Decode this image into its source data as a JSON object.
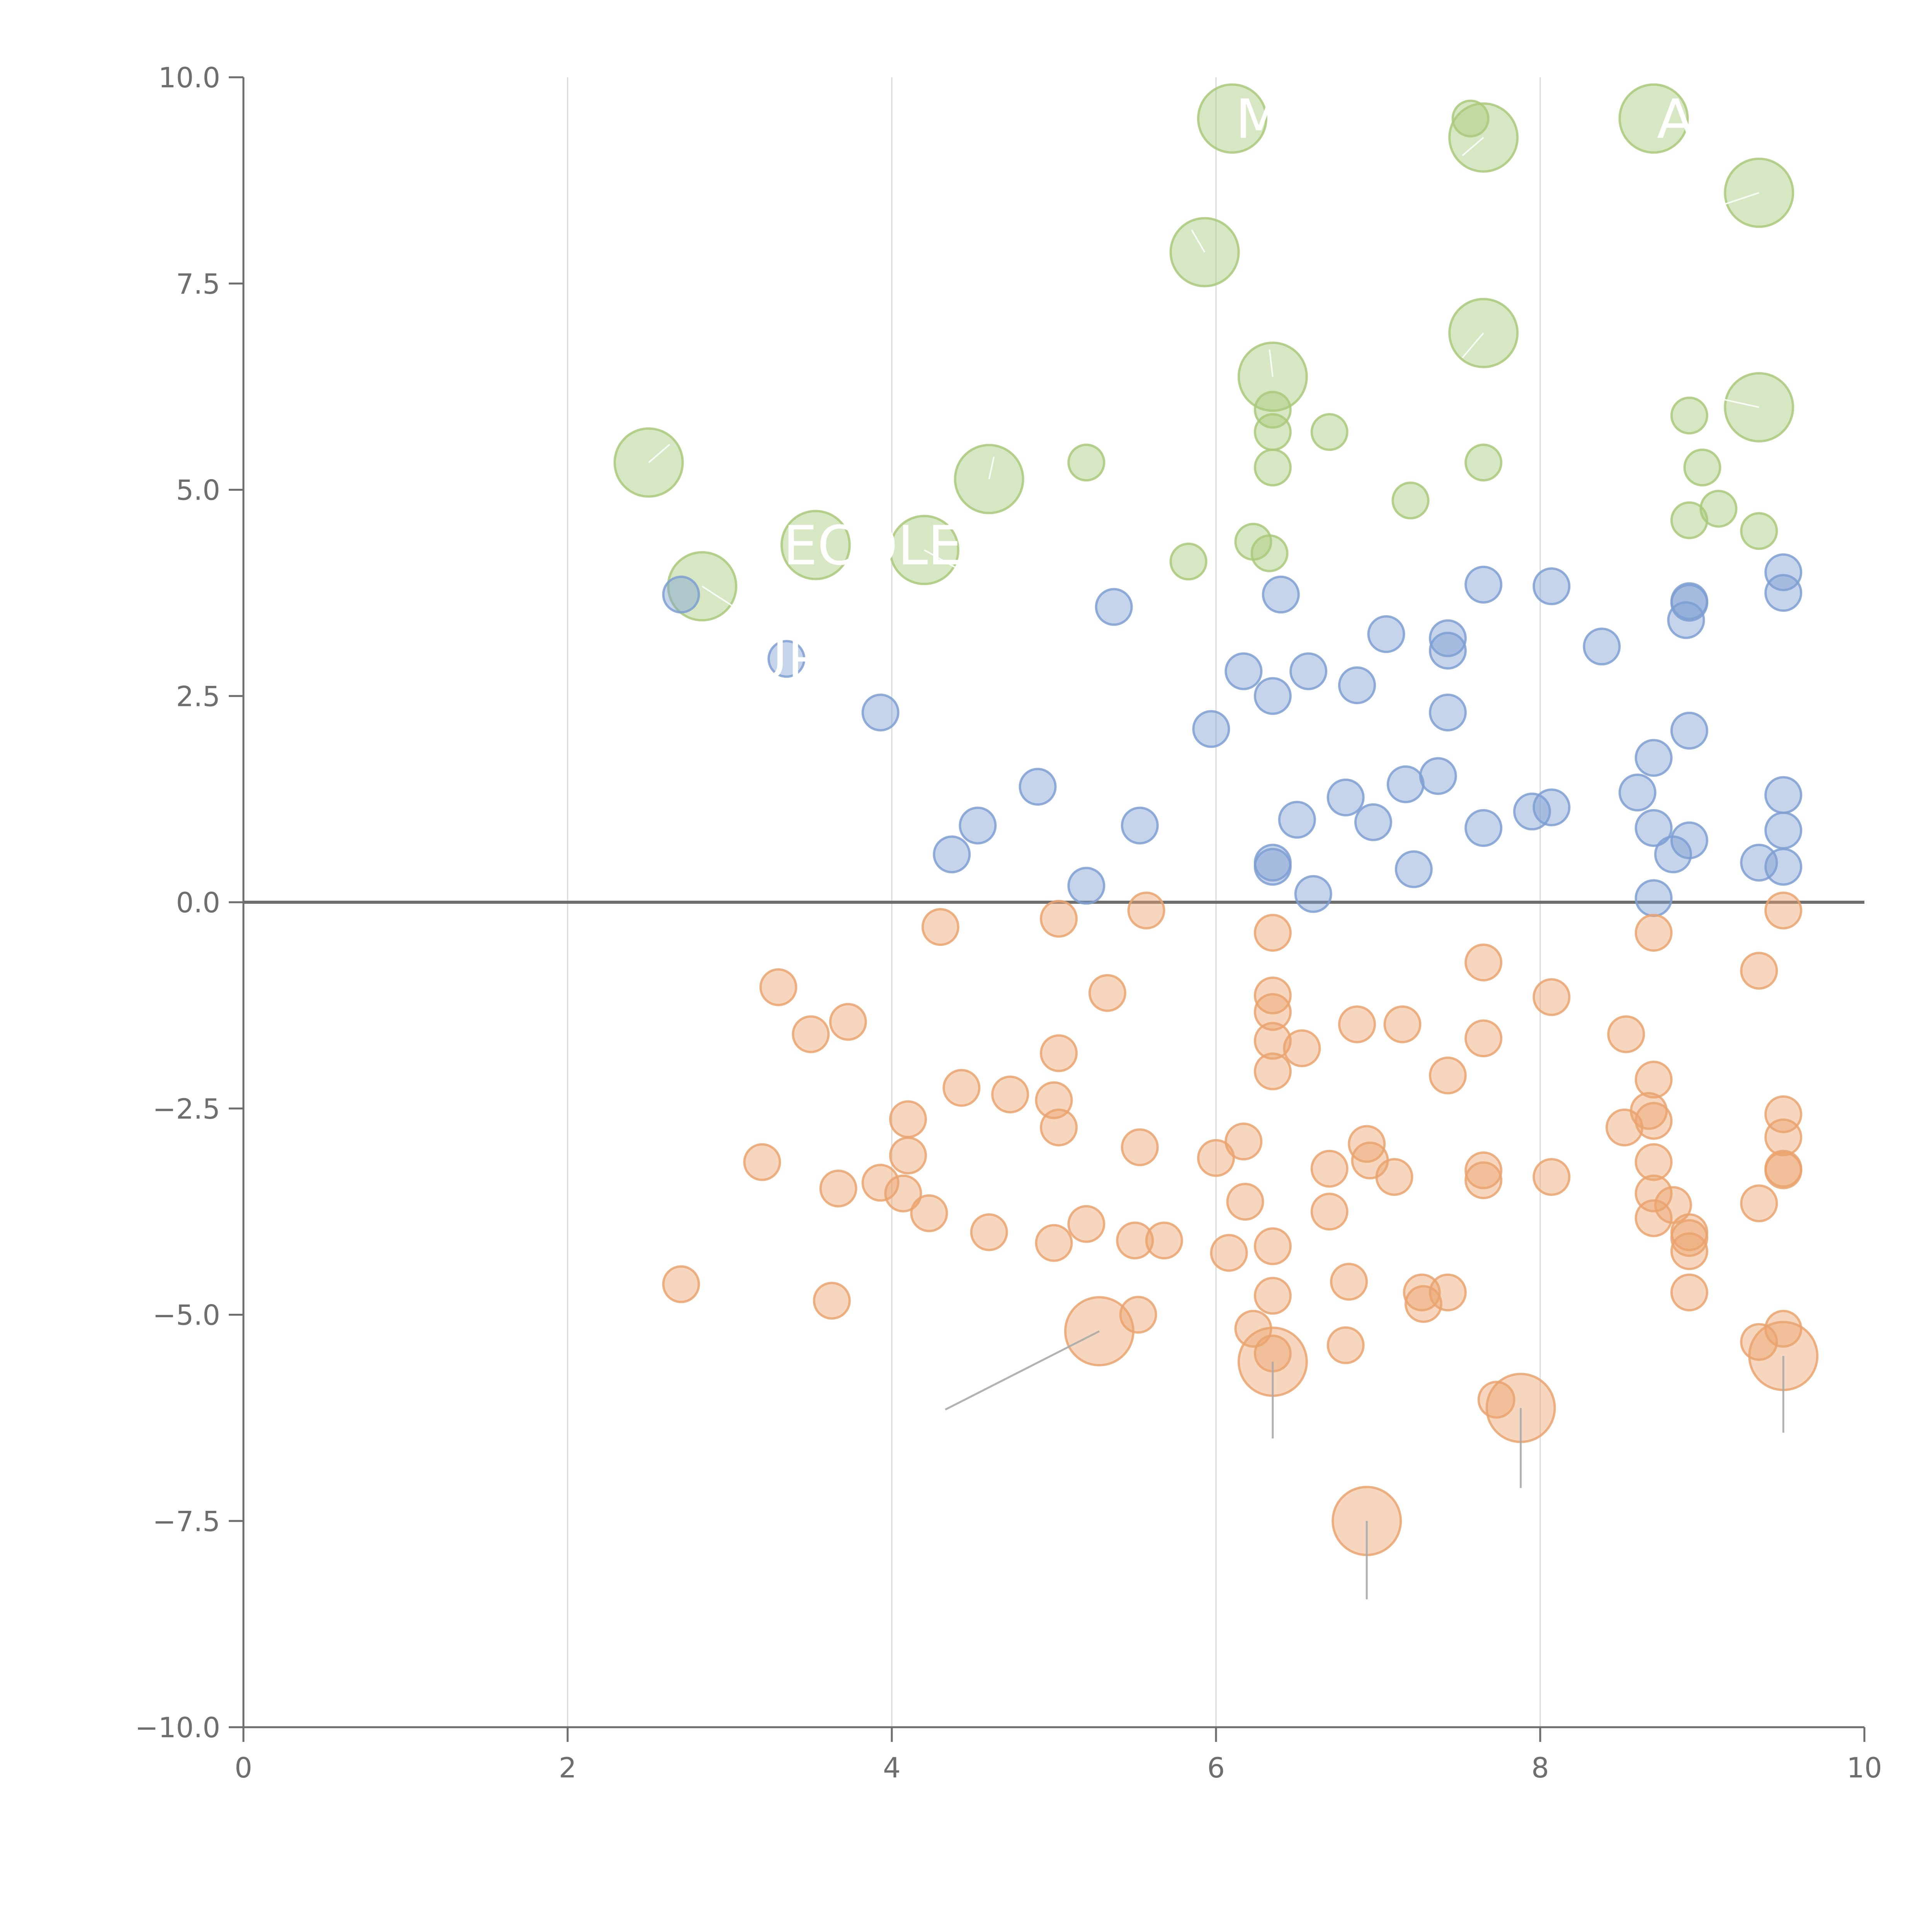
{
  "chart_data": {
    "type": "scatter",
    "title": "",
    "xlabel": "",
    "ylabel": "",
    "xlim": [
      0,
      10
    ],
    "ylim": [
      -10,
      10
    ],
    "x_ticks": [
      "0",
      "2",
      "4",
      "6",
      "8",
      "10"
    ],
    "y_ticks": [
      "10.0",
      "7.5",
      "5.0",
      "2.5",
      "0.0",
      "−2.5",
      "−5.0",
      "−7.5",
      "−10.0"
    ],
    "grid": "vertical",
    "zero_line": 0,
    "colors": {
      "green": "#a9c97a",
      "blue": "#7e9fd2",
      "orange": "#eaa36e",
      "axis": "#6e6e6e",
      "grid": "#d9d9d9",
      "leader": "#aaaaaa"
    },
    "series": [
      {
        "name": "green",
        "color": "#a9c97a",
        "points": [
          {
            "x": 6.1,
            "y": 9.5,
            "s": 3
          },
          {
            "x": 7.57,
            "y": 9.5,
            "s": 1
          },
          {
            "x": 7.65,
            "y": 9.27,
            "s": 3
          },
          {
            "x": 8.7,
            "y": 9.5,
            "s": 3
          },
          {
            "x": 9.35,
            "y": 8.6,
            "s": 3
          },
          {
            "x": 5.93,
            "y": 7.88,
            "s": 3
          },
          {
            "x": 7.65,
            "y": 6.9,
            "s": 3
          },
          {
            "x": 6.35,
            "y": 6.37,
            "s": 3
          },
          {
            "x": 9.35,
            "y": 6.0,
            "s": 3
          },
          {
            "x": 6.35,
            "y": 5.97,
            "s": 1
          },
          {
            "x": 6.35,
            "y": 5.7,
            "s": 1
          },
          {
            "x": 6.7,
            "y": 5.7,
            "s": 1
          },
          {
            "x": 8.92,
            "y": 5.9,
            "s": 1
          },
          {
            "x": 2.5,
            "y": 5.33,
            "s": 3
          },
          {
            "x": 4.6,
            "y": 5.13,
            "s": 3
          },
          {
            "x": 5.2,
            "y": 5.33,
            "s": 1
          },
          {
            "x": 6.35,
            "y": 5.27,
            "s": 1
          },
          {
            "x": 7.65,
            "y": 5.33,
            "s": 1
          },
          {
            "x": 9.0,
            "y": 5.27,
            "s": 1
          },
          {
            "x": 7.2,
            "y": 4.87,
            "s": 1
          },
          {
            "x": 9.1,
            "y": 4.77,
            "s": 1
          },
          {
            "x": 8.92,
            "y": 4.63,
            "s": 1
          },
          {
            "x": 9.35,
            "y": 4.5,
            "s": 1
          },
          {
            "x": 3.53,
            "y": 4.33,
            "s": 3
          },
          {
            "x": 4.2,
            "y": 4.27,
            "s": 3
          },
          {
            "x": 6.23,
            "y": 4.37,
            "s": 1
          },
          {
            "x": 6.33,
            "y": 4.23,
            "s": 1
          },
          {
            "x": 5.83,
            "y": 4.13,
            "s": 1
          },
          {
            "x": 2.83,
            "y": 3.83,
            "s": 3
          }
        ]
      },
      {
        "name": "blue",
        "color": "#7e9fd2",
        "points": [
          {
            "x": 9.5,
            "y": 4.0,
            "s": 1
          },
          {
            "x": 7.65,
            "y": 3.85,
            "s": 1
          },
          {
            "x": 8.07,
            "y": 3.83,
            "s": 1
          },
          {
            "x": 2.7,
            "y": 3.73,
            "s": 1
          },
          {
            "x": 6.4,
            "y": 3.73,
            "s": 1
          },
          {
            "x": 9.5,
            "y": 3.75,
            "s": 1
          },
          {
            "x": 8.92,
            "y": 3.65,
            "s": 1
          },
          {
            "x": 8.92,
            "y": 3.63,
            "s": 1
          },
          {
            "x": 5.37,
            "y": 3.58,
            "s": 1
          },
          {
            "x": 8.9,
            "y": 3.42,
            "s": 1
          },
          {
            "x": 7.05,
            "y": 3.25,
            "s": 1
          },
          {
            "x": 7.43,
            "y": 3.2,
            "s": 1
          },
          {
            "x": 8.38,
            "y": 3.1,
            "s": 1
          },
          {
            "x": 7.43,
            "y": 3.05,
            "s": 1
          },
          {
            "x": 3.35,
            "y": 2.95,
            "s": 1
          },
          {
            "x": 6.17,
            "y": 2.8,
            "s": 1
          },
          {
            "x": 6.57,
            "y": 2.8,
            "s": 1
          },
          {
            "x": 6.87,
            "y": 2.63,
            "s": 1
          },
          {
            "x": 6.35,
            "y": 2.5,
            "s": 1
          },
          {
            "x": 3.93,
            "y": 2.3,
            "s": 1
          },
          {
            "x": 7.43,
            "y": 2.3,
            "s": 1
          },
          {
            "x": 5.97,
            "y": 2.1,
            "s": 1
          },
          {
            "x": 8.92,
            "y": 2.08,
            "s": 1
          },
          {
            "x": 8.7,
            "y": 1.75,
            "s": 1
          },
          {
            "x": 7.37,
            "y": 1.53,
            "s": 1
          },
          {
            "x": 4.9,
            "y": 1.4,
            "s": 1
          },
          {
            "x": 7.17,
            "y": 1.43,
            "s": 1
          },
          {
            "x": 8.6,
            "y": 1.33,
            "s": 1
          },
          {
            "x": 9.5,
            "y": 1.3,
            "s": 1
          },
          {
            "x": 6.8,
            "y": 1.27,
            "s": 1
          },
          {
            "x": 8.07,
            "y": 1.15,
            "s": 1
          },
          {
            "x": 7.95,
            "y": 1.1,
            "s": 1
          },
          {
            "x": 6.5,
            "y": 1.0,
            "s": 1
          },
          {
            "x": 6.97,
            "y": 0.97,
            "s": 1
          },
          {
            "x": 4.53,
            "y": 0.93,
            "s": 1
          },
          {
            "x": 5.53,
            "y": 0.93,
            "s": 1
          },
          {
            "x": 7.65,
            "y": 0.9,
            "s": 1
          },
          {
            "x": 8.7,
            "y": 0.9,
            "s": 1
          },
          {
            "x": 9.5,
            "y": 0.87,
            "s": 1
          },
          {
            "x": 8.92,
            "y": 0.75,
            "s": 1
          },
          {
            "x": 4.37,
            "y": 0.58,
            "s": 1
          },
          {
            "x": 8.82,
            "y": 0.58,
            "s": 1
          },
          {
            "x": 6.35,
            "y": 0.48,
            "s": 1
          },
          {
            "x": 9.35,
            "y": 0.48,
            "s": 1
          },
          {
            "x": 6.35,
            "y": 0.43,
            "s": 1
          },
          {
            "x": 7.22,
            "y": 0.4,
            "s": 1
          },
          {
            "x": 9.5,
            "y": 0.43,
            "s": 1
          },
          {
            "x": 5.2,
            "y": 0.2,
            "s": 1
          },
          {
            "x": 6.6,
            "y": 0.1,
            "s": 1
          },
          {
            "x": 8.7,
            "y": 0.05,
            "s": 1
          }
        ]
      },
      {
        "name": "orange",
        "color": "#eaa36e",
        "points": [
          {
            "x": 5.57,
            "y": -0.1,
            "s": 1
          },
          {
            "x": 9.5,
            "y": -0.1,
            "s": 1
          },
          {
            "x": 5.03,
            "y": -0.2,
            "s": 1
          },
          {
            "x": 4.3,
            "y": -0.3,
            "s": 1
          },
          {
            "x": 6.35,
            "y": -0.37,
            "s": 1
          },
          {
            "x": 8.7,
            "y": -0.37,
            "s": 1
          },
          {
            "x": 7.65,
            "y": -0.73,
            "s": 1
          },
          {
            "x": 9.35,
            "y": -0.83,
            "s": 1
          },
          {
            "x": 3.3,
            "y": -1.03,
            "s": 1
          },
          {
            "x": 5.33,
            "y": -1.1,
            "s": 1
          },
          {
            "x": 6.35,
            "y": -1.13,
            "s": 1
          },
          {
            "x": 8.07,
            "y": -1.15,
            "s": 1
          },
          {
            "x": 6.35,
            "y": -1.33,
            "s": 1
          },
          {
            "x": 3.73,
            "y": -1.45,
            "s": 1
          },
          {
            "x": 6.87,
            "y": -1.48,
            "s": 1
          },
          {
            "x": 7.15,
            "y": -1.48,
            "s": 1
          },
          {
            "x": 3.5,
            "y": -1.6,
            "s": 1
          },
          {
            "x": 8.53,
            "y": -1.6,
            "s": 1
          },
          {
            "x": 6.35,
            "y": -1.68,
            "s": 1
          },
          {
            "x": 7.65,
            "y": -1.65,
            "s": 1
          },
          {
            "x": 6.53,
            "y": -1.77,
            "s": 1
          },
          {
            "x": 5.03,
            "y": -1.83,
            "s": 1
          },
          {
            "x": 6.35,
            "y": -2.05,
            "s": 1
          },
          {
            "x": 7.43,
            "y": -2.1,
            "s": 1
          },
          {
            "x": 8.7,
            "y": -2.15,
            "s": 1
          },
          {
            "x": 4.43,
            "y": -2.25,
            "s": 1
          },
          {
            "x": 4.73,
            "y": -2.33,
            "s": 1
          },
          {
            "x": 5.0,
            "y": -2.4,
            "s": 1
          },
          {
            "x": 8.67,
            "y": -2.53,
            "s": 1
          },
          {
            "x": 9.5,
            "y": -2.57,
            "s": 1
          },
          {
            "x": 4.1,
            "y": -2.63,
            "s": 1
          },
          {
            "x": 8.7,
            "y": -2.65,
            "s": 1
          },
          {
            "x": 8.52,
            "y": -2.73,
            "s": 1
          },
          {
            "x": 5.03,
            "y": -2.73,
            "s": 1
          },
          {
            "x": 9.5,
            "y": -2.85,
            "s": 1
          },
          {
            "x": 6.17,
            "y": -2.9,
            "s": 1
          },
          {
            "x": 6.93,
            "y": -2.93,
            "s": 1
          },
          {
            "x": 5.53,
            "y": -2.97,
            "s": 1
          },
          {
            "x": 4.1,
            "y": -3.07,
            "s": 1
          },
          {
            "x": 6.0,
            "y": -3.1,
            "s": 1
          },
          {
            "x": 6.95,
            "y": -3.13,
            "s": 1
          },
          {
            "x": 3.2,
            "y": -3.15,
            "s": 1
          },
          {
            "x": 8.7,
            "y": -3.15,
            "s": 1
          },
          {
            "x": 6.7,
            "y": -3.23,
            "s": 1
          },
          {
            "x": 9.5,
            "y": -3.23,
            "s": 1
          },
          {
            "x": 9.5,
            "y": -3.25,
            "s": 1
          },
          {
            "x": 7.65,
            "y": -3.25,
            "s": 1
          },
          {
            "x": 7.1,
            "y": -3.33,
            "s": 1
          },
          {
            "x": 8.07,
            "y": -3.33,
            "s": 1
          },
          {
            "x": 7.65,
            "y": -3.37,
            "s": 1
          },
          {
            "x": 3.93,
            "y": -3.4,
            "s": 1
          },
          {
            "x": 3.67,
            "y": -3.47,
            "s": 1
          },
          {
            "x": 4.07,
            "y": -3.53,
            "s": 1
          },
          {
            "x": 8.7,
            "y": -3.53,
            "s": 1
          },
          {
            "x": 6.18,
            "y": -3.63,
            "s": 1
          },
          {
            "x": 9.35,
            "y": -3.65,
            "s": 1
          },
          {
            "x": 8.82,
            "y": -3.67,
            "s": 1
          },
          {
            "x": 4.23,
            "y": -3.77,
            "s": 1
          },
          {
            "x": 6.7,
            "y": -3.75,
            "s": 1
          },
          {
            "x": 8.7,
            "y": -3.83,
            "s": 1
          },
          {
            "x": 5.2,
            "y": -3.9,
            "s": 1
          },
          {
            "x": 4.6,
            "y": -4.0,
            "s": 1
          },
          {
            "x": 8.92,
            "y": -4.0,
            "s": 1
          },
          {
            "x": 8.92,
            "y": -4.07,
            "s": 1
          },
          {
            "x": 5.5,
            "y": -4.1,
            "s": 1
          },
          {
            "x": 5.68,
            "y": -4.1,
            "s": 1
          },
          {
            "x": 5.0,
            "y": -4.13,
            "s": 1
          },
          {
            "x": 6.35,
            "y": -4.17,
            "s": 1
          },
          {
            "x": 8.92,
            "y": -4.23,
            "s": 1
          },
          {
            "x": 6.08,
            "y": -4.25,
            "s": 1
          },
          {
            "x": 6.82,
            "y": -4.6,
            "s": 1
          },
          {
            "x": 2.7,
            "y": -4.63,
            "s": 1
          },
          {
            "x": 7.27,
            "y": -4.73,
            "s": 1
          },
          {
            "x": 7.43,
            "y": -4.73,
            "s": 1
          },
          {
            "x": 8.92,
            "y": -4.73,
            "s": 1
          },
          {
            "x": 6.35,
            "y": -4.77,
            "s": 1
          },
          {
            "x": 3.63,
            "y": -4.83,
            "s": 1
          },
          {
            "x": 7.28,
            "y": -4.87,
            "s": 1
          },
          {
            "x": 5.52,
            "y": -5.0,
            "s": 1
          },
          {
            "x": 6.23,
            "y": -5.17,
            "s": 1
          },
          {
            "x": 9.5,
            "y": -5.17,
            "s": 1
          },
          {
            "x": 5.28,
            "y": -5.2,
            "s": 3
          },
          {
            "x": 9.35,
            "y": -5.33,
            "s": 1
          },
          {
            "x": 6.8,
            "y": -5.37,
            "s": 1
          },
          {
            "x": 6.35,
            "y": -5.47,
            "s": 1
          },
          {
            "x": 9.5,
            "y": -5.5,
            "s": 3
          },
          {
            "x": 6.35,
            "y": -5.57,
            "s": 3
          },
          {
            "x": 7.73,
            "y": -6.03,
            "s": 1
          },
          {
            "x": 7.88,
            "y": -6.13,
            "s": 3
          },
          {
            "x": 6.93,
            "y": -7.5,
            "s": 3
          }
        ]
      }
    ],
    "labels": [
      {
        "text": "M",
        "x": 6.1,
        "y": 9.5,
        "anchor": "start",
        "dx": 0.02
      },
      {
        "text": "A",
        "x": 8.7,
        "y": 9.5,
        "anchor": "start",
        "dx": 0.02
      },
      {
        "text": "ECOLE",
        "x": 3.53,
        "y": 4.33,
        "anchor": "start",
        "dx": -0.2
      },
      {
        "text": "UR",
        "x": 3.35,
        "y": 2.95,
        "anchor": "middle",
        "dx": 0.0
      }
    ],
    "leaders": [
      {
        "x1": 5.93,
        "y1": 7.88,
        "x2": 5.85,
        "y2": 8.15
      },
      {
        "x1": 7.65,
        "y1": 9.27,
        "x2": 7.52,
        "y2": 9.05
      },
      {
        "x1": 9.35,
        "y1": 8.6,
        "x2": 9.12,
        "y2": 8.45
      },
      {
        "x1": 7.65,
        "y1": 6.9,
        "x2": 7.52,
        "y2": 6.6
      },
      {
        "x1": 6.35,
        "y1": 6.37,
        "x2": 6.33,
        "y2": 6.7
      },
      {
        "x1": 9.35,
        "y1": 6.0,
        "x2": 9.12,
        "y2": 6.1
      },
      {
        "x1": 2.5,
        "y1": 5.33,
        "x2": 2.63,
        "y2": 5.55
      },
      {
        "x1": 4.6,
        "y1": 5.13,
        "x2": 4.63,
        "y2": 5.4
      },
      {
        "x1": 4.2,
        "y1": 4.27,
        "x2": 4.4,
        "y2": 4.05
      },
      {
        "x1": 2.83,
        "y1": 3.83,
        "x2": 3.05,
        "y2": 3.55
      },
      {
        "x1": 5.28,
        "y1": -5.2,
        "x2": 4.33,
        "y2": -6.15,
        "grey": true
      },
      {
        "x1": 6.35,
        "y1": -5.57,
        "x2": 6.35,
        "y2": -6.5,
        "grey": true
      },
      {
        "x1": 7.88,
        "y1": -6.13,
        "x2": 7.88,
        "y2": -7.1,
        "grey": true
      },
      {
        "x1": 9.5,
        "y1": -5.5,
        "x2": 9.5,
        "y2": -6.43,
        "grey": true
      },
      {
        "x1": 6.93,
        "y1": -7.5,
        "x2": 6.93,
        "y2": -8.45,
        "grey": true
      }
    ]
  }
}
